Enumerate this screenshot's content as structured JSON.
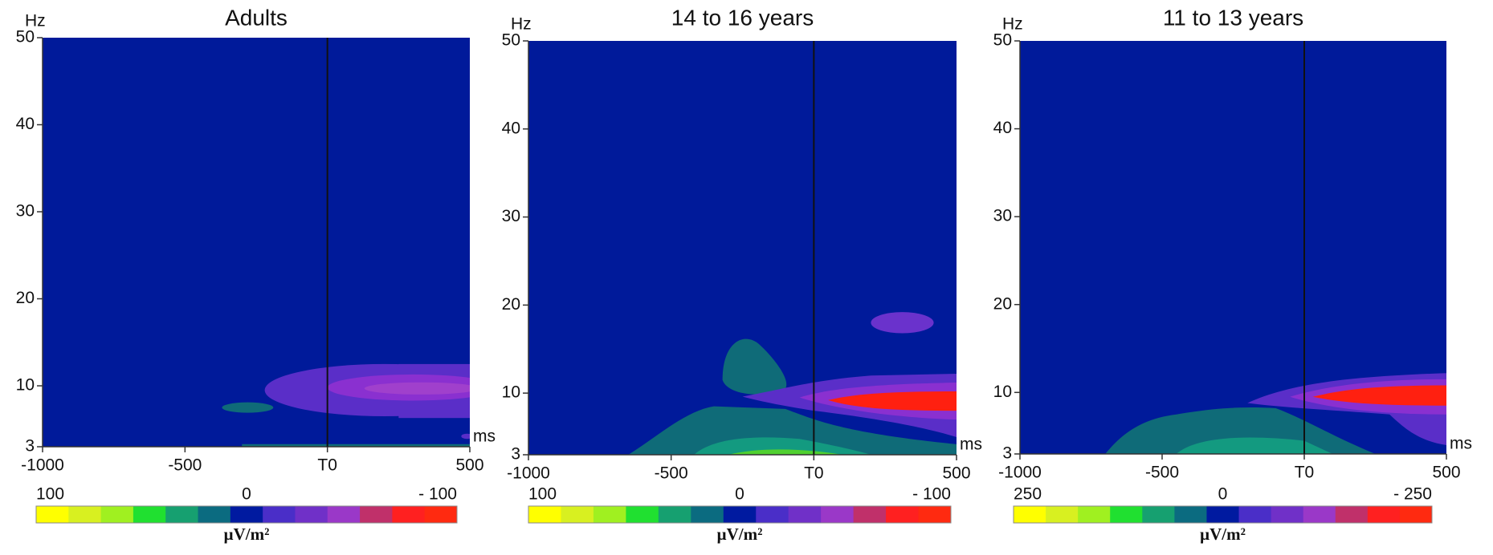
{
  "chart_data": [
    {
      "type": "heatmap",
      "title": "Adults",
      "ylabel": "Hz",
      "xlabel": "ms",
      "background": "#001a9a",
      "xlim": [
        -1000,
        500
      ],
      "xticks": [
        -1000,
        -500,
        {
          "value": 0,
          "label": "T0"
        },
        500
      ],
      "ylim": [
        3,
        50
      ],
      "yticks": [
        3,
        10,
        20,
        30,
        40,
        50
      ],
      "vline": 0,
      "colorbar": {
        "labels": [
          "100",
          "0",
          "- 100"
        ],
        "unit": "µV/m²",
        "colors": [
          "#ffff00",
          "#d8f020",
          "#a0f020",
          "#20e030",
          "#16a070",
          "#0b6b80",
          "#001aa0",
          "#4a2ec8",
          "#7030c8",
          "#9a38c8",
          "#c0306a",
          "#ff2020",
          "#ff2a10"
        ]
      }
    },
    {
      "type": "heatmap",
      "title": "14 to 16 years",
      "ylabel": "Hz",
      "xlabel": "ms",
      "background": "#001a9a",
      "xlim": [
        -1000,
        500
      ],
      "xticks": [
        -1000,
        -500,
        {
          "value": 0,
          "label": "T0"
        },
        500
      ],
      "ylim": [
        3,
        50
      ],
      "yticks": [
        3,
        10,
        20,
        30,
        40,
        50
      ],
      "vline": 0,
      "colorbar": {
        "labels": [
          "100",
          "0",
          "- 100"
        ],
        "unit": "µV/m²",
        "colors": [
          "#ffff00",
          "#d8f020",
          "#a0f020",
          "#20e030",
          "#16a070",
          "#0b6b80",
          "#001aa0",
          "#4a2ec8",
          "#7030c8",
          "#9a38c8",
          "#c0306a",
          "#ff2020",
          "#ff2a10"
        ]
      }
    },
    {
      "type": "heatmap",
      "title": "11 to 13 years",
      "ylabel": "Hz",
      "xlabel": "ms",
      "background": "#001a9a",
      "xlim": [
        -1000,
        500
      ],
      "xticks": [
        -1000,
        -500,
        {
          "value": 0,
          "label": "T0"
        },
        500
      ],
      "ylim": [
        3,
        50
      ],
      "yticks": [
        3,
        10,
        20,
        30,
        40,
        50
      ],
      "vline": 0,
      "colorbar": {
        "labels": [
          "250",
          "0",
          "- 250"
        ],
        "unit": "µV/m²",
        "colors": [
          "#ffff00",
          "#d8f020",
          "#a0f020",
          "#20e030",
          "#16a070",
          "#0b6b80",
          "#001aa0",
          "#4a2ec8",
          "#7030c8",
          "#9a38c8",
          "#c0306a",
          "#ff2020",
          "#ff2a10"
        ]
      }
    }
  ]
}
